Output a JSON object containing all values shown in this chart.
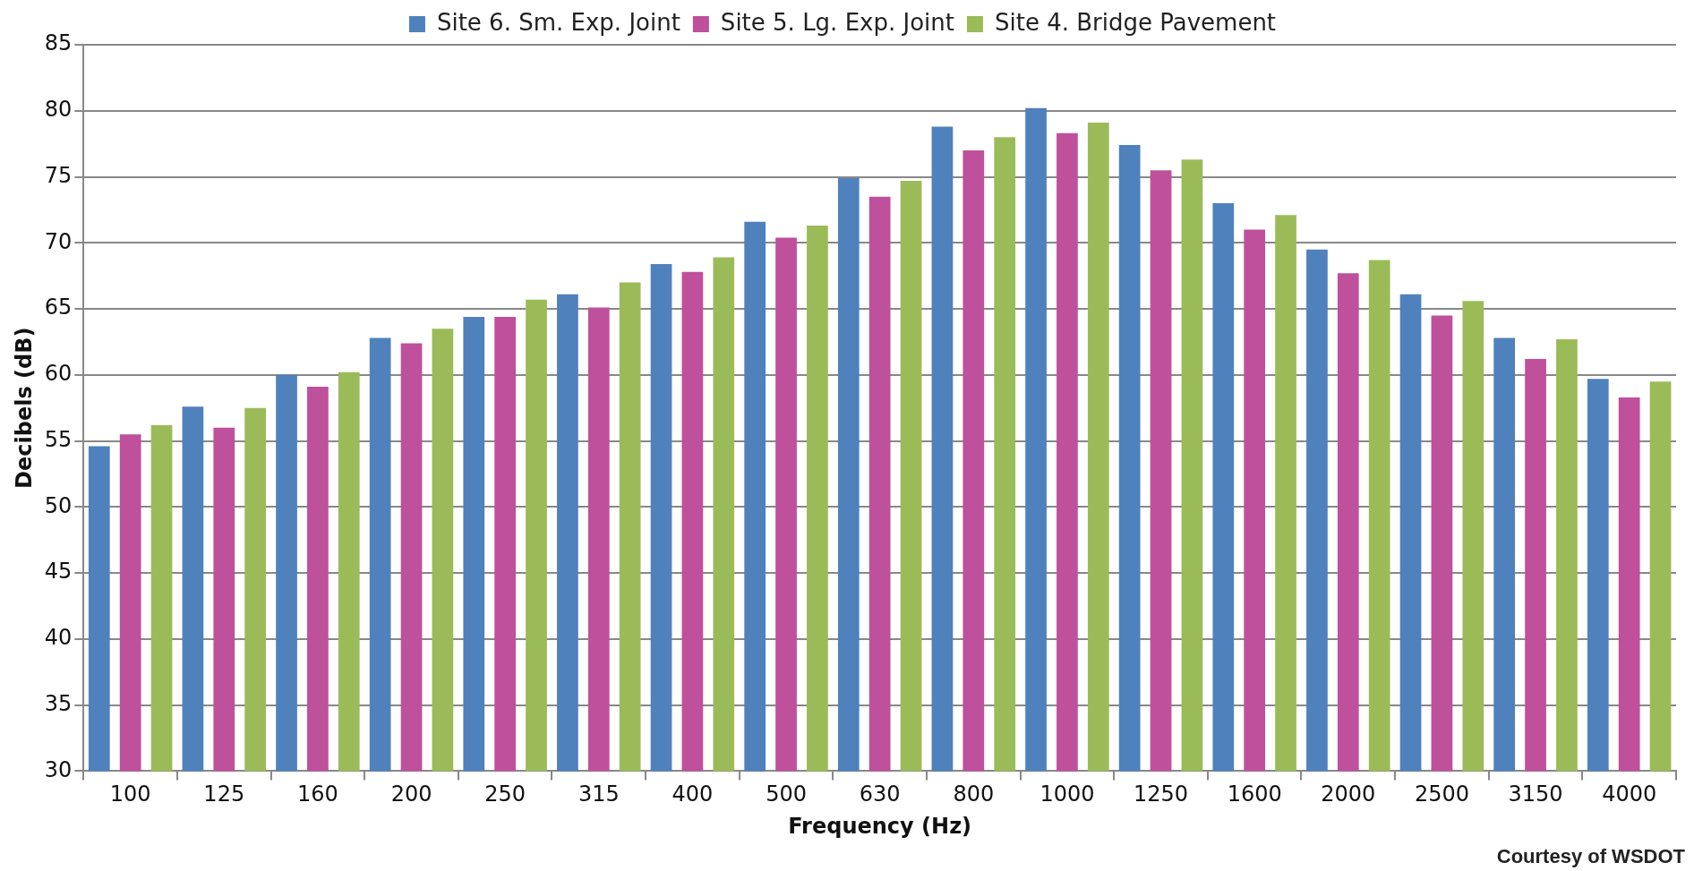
{
  "chart_data": {
    "type": "bar",
    "xlabel": "Frequency (Hz)",
    "ylabel": "Decibels (dB)",
    "categories": [
      "100",
      "125",
      "160",
      "200",
      "250",
      "315",
      "400",
      "500",
      "630",
      "800",
      "1000",
      "1250",
      "1600",
      "2000",
      "2500",
      "3150",
      "4000"
    ],
    "series": [
      {
        "name": "Site 6. Sm. Exp. Joint",
        "color": "#4f81bd",
        "values": [
          54.6,
          57.6,
          60.0,
          62.8,
          64.4,
          66.1,
          68.4,
          71.6,
          74.9,
          78.8,
          80.2,
          77.4,
          73.0,
          69.5,
          66.1,
          62.8,
          59.7
        ]
      },
      {
        "name": "Site 5. Lg. Exp. Joint",
        "color": "#be509c",
        "values": [
          55.5,
          56.0,
          59.1,
          62.4,
          64.4,
          65.1,
          67.8,
          70.4,
          73.5,
          77.0,
          78.3,
          75.5,
          71.0,
          67.7,
          64.5,
          61.2,
          58.3
        ]
      },
      {
        "name": "Site 4. Bridge Pavement",
        "color": "#9bbb59",
        "values": [
          56.2,
          57.5,
          60.2,
          63.5,
          65.7,
          67.0,
          68.9,
          71.3,
          74.7,
          78.0,
          79.1,
          76.3,
          72.1,
          68.7,
          65.6,
          62.7,
          59.5
        ]
      }
    ],
    "ylim": [
      30,
      85
    ],
    "yticks": [
      30,
      35,
      40,
      45,
      50,
      55,
      60,
      65,
      70,
      75,
      80,
      85
    ],
    "grid": "y",
    "legend": "top",
    "annotations": [
      "Courtesy of WSDOT"
    ]
  }
}
